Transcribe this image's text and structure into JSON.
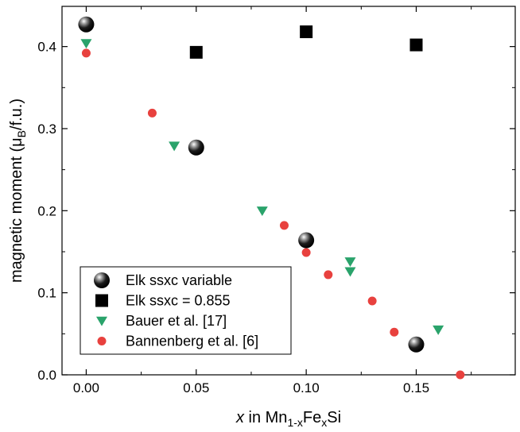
{
  "chart_data": {
    "type": "scatter",
    "xlabel": {
      "italic": "x",
      "pre": " in Mn",
      "sub1": "1-x",
      "mid": "Fe",
      "sub2": "x",
      "post": "Si"
    },
    "ylabel": {
      "pre": "magnetic moment (μ",
      "sub": "B",
      "post": "/f.u.)"
    },
    "xlim": [
      -0.011,
      0.195
    ],
    "ylim": [
      0,
      0.449
    ],
    "xticks": [
      0.0,
      0.05,
      0.1,
      0.15
    ],
    "xtick_labels": [
      "0.00",
      "0.05",
      "0.10",
      "0.15"
    ],
    "yticks": [
      0.0,
      0.1,
      0.2,
      0.3,
      0.4
    ],
    "ytick_labels": [
      "0.0",
      "0.1",
      "0.2",
      "0.3",
      "0.4"
    ],
    "grid": false,
    "legend_position": "bottom-left",
    "series": [
      {
        "name": "Elk ssxc variable",
        "marker": "sphere",
        "color": "#000000",
        "points": [
          [
            0.0,
            0.427
          ],
          [
            0.05,
            0.277
          ],
          [
            0.1,
            0.164
          ],
          [
            0.15,
            0.037
          ]
        ]
      },
      {
        "name": "Elk ssxc = 0.855",
        "marker": "square",
        "color": "#000000",
        "points": [
          [
            0.05,
            0.393
          ],
          [
            0.1,
            0.418
          ],
          [
            0.15,
            0.402
          ]
        ]
      },
      {
        "name": "Bauer et al. [17]",
        "marker": "triangle-down",
        "color": "#2aa36b",
        "points": [
          [
            0.0,
            0.404
          ],
          [
            0.04,
            0.279
          ],
          [
            0.08,
            0.2
          ],
          [
            0.12,
            0.138
          ],
          [
            0.12,
            0.126
          ],
          [
            0.16,
            0.055
          ]
        ]
      },
      {
        "name": "Bannenberg et al. [6]",
        "marker": "circle",
        "color": "#e8413e",
        "points": [
          [
            0.0,
            0.392
          ],
          [
            0.03,
            0.319
          ],
          [
            0.09,
            0.182
          ],
          [
            0.1,
            0.149
          ],
          [
            0.11,
            0.122
          ],
          [
            0.13,
            0.09
          ],
          [
            0.14,
            0.052
          ],
          [
            0.17,
            0.0
          ]
        ]
      }
    ]
  }
}
